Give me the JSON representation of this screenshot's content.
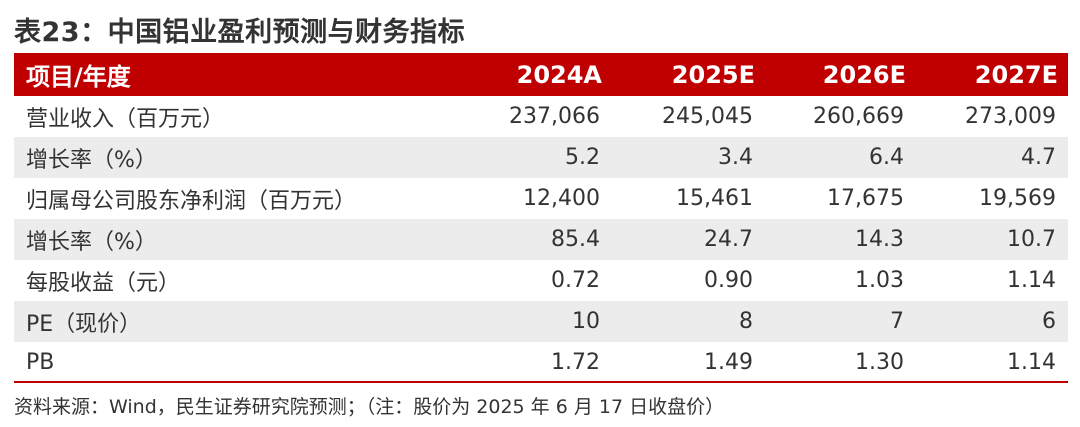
{
  "title": "表23：中国铝业盈利预测与财务指标",
  "table": {
    "headers": [
      "项目/年度",
      "2024A",
      "2025E",
      "2026E",
      "2027E"
    ],
    "rows": [
      [
        "营业收入（百万元）",
        "237,066",
        "245,045",
        "260,669",
        "273,009"
      ],
      [
        "增长率（%）",
        "5.2",
        "3.4",
        "6.4",
        "4.7"
      ],
      [
        "归属母公司股东净利润（百万元）",
        "12,400",
        "15,461",
        "17,675",
        "19,569"
      ],
      [
        "增长率（%）",
        "85.4",
        "24.7",
        "14.3",
        "10.7"
      ],
      [
        "每股收益（元）",
        "0.72",
        "0.90",
        "1.03",
        "1.14"
      ],
      [
        "PE（现价）",
        "10",
        "8",
        "7",
        "6"
      ],
      [
        "PB",
        "1.72",
        "1.49",
        "1.30",
        "1.14"
      ]
    ]
  },
  "source": "资料来源：Wind，民生证券研究院预测；（注：股价为 2025 年 6 月 17 日收盘价）",
  "colors": {
    "header_bg": "#c00000",
    "row_shade": "#ececec"
  }
}
